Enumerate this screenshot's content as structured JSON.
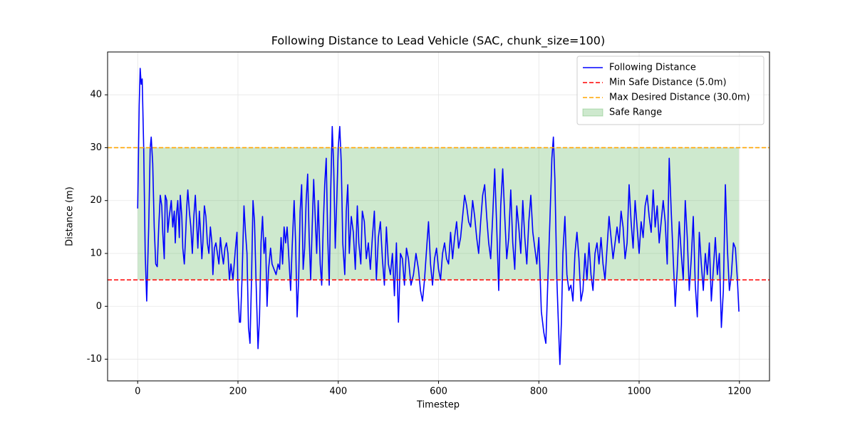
{
  "chart_data": {
    "type": "line",
    "title": "Following Distance to Lead Vehicle (SAC, chunk_size=100)",
    "x_label": "Timestep",
    "y_label": "Distance (m)",
    "x": [
      0,
      3,
      5,
      7,
      9,
      12,
      15,
      18,
      22,
      25,
      27,
      30,
      33,
      36,
      39,
      42,
      45,
      48,
      50,
      53,
      55,
      58,
      60,
      63,
      67,
      70,
      73,
      75,
      77,
      80,
      83,
      85,
      88,
      90,
      93,
      95,
      98,
      100,
      103,
      106,
      109,
      112,
      115,
      118,
      120,
      123,
      126,
      128,
      130,
      133,
      136,
      139,
      142,
      145,
      148,
      150,
      153,
      156,
      159,
      162,
      165,
      168,
      171,
      174,
      177,
      180,
      183,
      186,
      190,
      195,
      198,
      200,
      203,
      205,
      208,
      212,
      215,
      218,
      221,
      224,
      227,
      230,
      233,
      236,
      240,
      243,
      246,
      249,
      252,
      255,
      258,
      261,
      265,
      268,
      272,
      276,
      280,
      283,
      286,
      289,
      292,
      295,
      298,
      301,
      305,
      308,
      312,
      315,
      318,
      321,
      324,
      327,
      330,
      333,
      336,
      339,
      342,
      345,
      348,
      351,
      354,
      357,
      360,
      364,
      367,
      370,
      373,
      376,
      379,
      382,
      385,
      388,
      391,
      394,
      397,
      400,
      403,
      406,
      409,
      413,
      416,
      419,
      422,
      426,
      430,
      434,
      438,
      441,
      445,
      448,
      452,
      456,
      460,
      464,
      468,
      472,
      476,
      480,
      484,
      488,
      492,
      496,
      500,
      504,
      508,
      512,
      516,
      520,
      524,
      528,
      532,
      536,
      540,
      545,
      550,
      555,
      560,
      564,
      568,
      572,
      577,
      580,
      584,
      588,
      592,
      596,
      600,
      604,
      608,
      612,
      616,
      620,
      624,
      628,
      632,
      636,
      640,
      644,
      648,
      652,
      656,
      660,
      664,
      668,
      672,
      676,
      680,
      684,
      688,
      692,
      696,
      700,
      704,
      708,
      712,
      716,
      720,
      724,
      728,
      732,
      736,
      740,
      744,
      748,
      752,
      756,
      760,
      764,
      768,
      772,
      776,
      780,
      784,
      788,
      792,
      796,
      800,
      805,
      810,
      814,
      818,
      822,
      826,
      829,
      832,
      836,
      840,
      842,
      845,
      848,
      852,
      856,
      860,
      864,
      868,
      872,
      876,
      880,
      884,
      888,
      892,
      896,
      900,
      904,
      908,
      912,
      916,
      920,
      924,
      928,
      932,
      936,
      940,
      944,
      948,
      952,
      956,
      960,
      964,
      968,
      972,
      976,
      980,
      984,
      988,
      992,
      996,
      1000,
      1004,
      1008,
      1012,
      1016,
      1020,
      1024,
      1028,
      1032,
      1036,
      1040,
      1044,
      1048,
      1052,
      1056,
      1060,
      1064,
      1068,
      1072,
      1076,
      1080,
      1084,
      1088,
      1092,
      1096,
      1100,
      1104,
      1108,
      1112,
      1116,
      1120,
      1124,
      1128,
      1132,
      1136,
      1140,
      1144,
      1148,
      1152,
      1156,
      1160,
      1164,
      1168,
      1172,
      1176,
      1180,
      1184,
      1188,
      1192,
      1196,
      1199
    ],
    "series": [
      {
        "name": "Following Distance",
        "color": "#0000ff",
        "values": [
          18.5,
          38,
          45,
          42,
          43,
          30,
          10,
          1,
          15,
          30,
          32,
          27,
          15,
          8,
          7.5,
          15,
          21,
          19,
          14,
          9,
          21,
          20,
          14,
          17,
          20,
          15,
          18,
          12,
          17,
          20,
          13,
          21,
          17,
          11,
          8,
          12,
          19,
          22,
          18,
          15,
          10,
          17,
          21,
          15,
          11,
          18,
          13,
          9,
          12,
          19,
          17,
          12,
          10,
          15,
          12,
          6,
          11,
          12,
          10,
          8,
          13,
          10,
          8,
          11,
          12,
          10,
          5,
          8,
          5,
          11,
          14,
          3,
          -3,
          -3,
          5,
          19,
          14,
          10,
          -4,
          -7,
          5,
          20,
          16,
          5,
          -8,
          -2,
          12,
          17,
          10,
          13,
          0,
          7,
          11,
          8,
          7,
          6,
          8,
          7,
          13,
          8,
          15,
          12,
          15,
          10,
          3,
          11,
          20,
          12,
          -2,
          5,
          18,
          23,
          7,
          11,
          20,
          25,
          13,
          5,
          15,
          24,
          17,
          10,
          20,
          8,
          4,
          15,
          23,
          28,
          13,
          4,
          22,
          34,
          26,
          11,
          20,
          30,
          34,
          27,
          12,
          6,
          18,
          23,
          10,
          17,
          14,
          7,
          19,
          12,
          8,
          18,
          16,
          9,
          12,
          7,
          13,
          18,
          5,
          13,
          16,
          9,
          4,
          15,
          8,
          6,
          10,
          2,
          12,
          -3,
          10,
          9,
          4,
          11,
          9,
          4,
          6,
          10,
          7,
          3,
          1,
          5,
          12,
          16,
          8,
          4,
          9,
          11,
          7,
          5,
          10,
          12,
          9,
          8,
          14,
          9,
          13,
          16,
          11,
          13,
          17,
          21,
          19,
          16,
          15,
          20,
          17,
          13,
          10,
          16,
          21,
          23,
          17,
          12,
          9,
          17,
          26,
          15,
          3,
          19,
          26,
          17,
          9,
          13,
          22,
          12,
          7,
          19,
          15,
          10,
          20,
          13,
          8,
          16,
          21,
          14,
          11,
          8,
          13,
          -1,
          -5,
          -7,
          5,
          16,
          28,
          32,
          24,
          5,
          -6,
          -11,
          -3,
          10,
          17,
          6,
          3,
          4,
          1,
          10,
          14,
          9,
          1,
          3,
          10,
          5,
          12,
          6,
          3,
          10,
          12,
          8,
          13,
          8,
          5,
          11,
          17,
          13,
          9,
          12,
          15,
          12,
          18,
          15,
          9,
          12,
          23,
          16,
          11,
          20,
          15,
          10,
          16,
          13,
          19,
          21,
          17,
          14,
          22,
          15,
          19,
          12,
          16,
          20,
          16,
          8,
          28,
          18,
          9,
          0,
          7,
          16,
          10,
          5,
          20,
          13,
          3,
          9,
          17,
          4,
          -2,
          14,
          8,
          3,
          10,
          6,
          12,
          1,
          7,
          13,
          6,
          10,
          -4,
          3,
          23,
          11,
          3,
          6,
          12,
          11,
          5,
          -1
        ]
      }
    ],
    "hlines": [
      {
        "name": "Min Safe Distance (5.0m)",
        "color": "#ff0000",
        "value": 5
      },
      {
        "name": "Max Desired Distance (30.0m)",
        "color": "#ffa500",
        "value": 30
      }
    ],
    "fill": {
      "name": "Safe Range",
      "color": "#2ca02c"
    },
    "xlim": [
      -60,
      1260
    ],
    "ylim": [
      -14.1,
      48.1
    ],
    "xticks": [
      0,
      200,
      400,
      600,
      800,
      1000,
      1200
    ],
    "yticks": [
      -10,
      0,
      10,
      20,
      30,
      40
    ],
    "grid": true,
    "legend": "upper right"
  }
}
